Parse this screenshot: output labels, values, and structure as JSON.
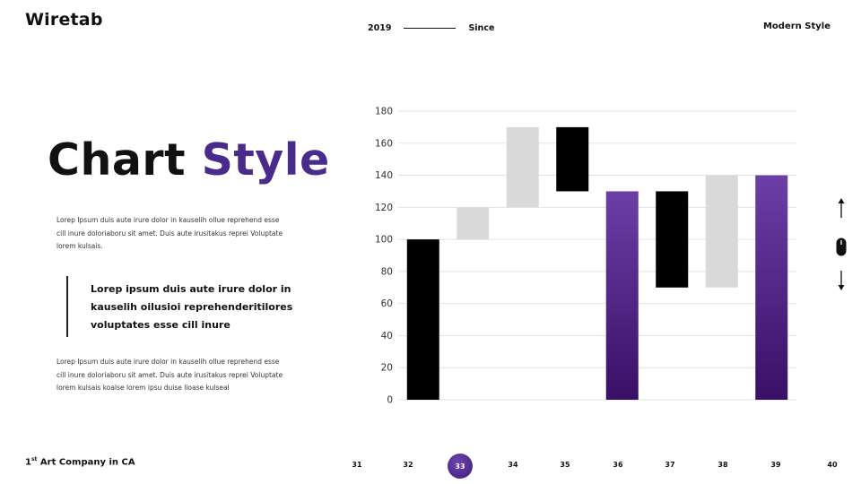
{
  "header": {
    "brand": "Wiretab",
    "year": "2019",
    "since": "Since",
    "style_label": "Modern Style"
  },
  "hero": {
    "title_part1": "Chart",
    "title_part2": "Style",
    "paragraph1": "Lorep  Ipsum duis aute irure dolor in kauselih ollue reprehend esse cill inure doloriaboru sit amet. Duis aute irusitakus reprei Voluptate lorem kulsais.",
    "quote": "Lorep  ipsum duis aute irure dolor in kauselih oilusioi reprehenderitilores voluptates esse cill inure",
    "paragraph2": "Lorep  Ipsum duis aute irure dolor in kauselih ollue reprehend esse cill inure doloriaboru sit amet. Duis aute irusitakus reprei Voluptate lorem kulsais koalse lorem ipsu duise lioase kulseal"
  },
  "footer": {
    "company_sup": "st",
    "company_prefix": "1",
    "company_rest": " Art Company in CA"
  },
  "pager": {
    "pages": [
      "31",
      "32",
      "33",
      "34",
      "35",
      "36",
      "37",
      "38",
      "39",
      "40"
    ],
    "active": "33"
  },
  "colors": {
    "accent": "#4a2a8a",
    "bar_black": "#000000",
    "bar_grey": "#d9d9d9",
    "bar_purple_top": "#6b3fa6",
    "bar_purple_bottom": "#3a0f66",
    "grid": "#e3e3e3"
  },
  "icons": {
    "up": "arrow-up-icon",
    "mouse": "mouse-icon",
    "down": "arrow-down-icon"
  },
  "chart_data": {
    "type": "bar",
    "subtype": "waterfall",
    "title": "",
    "xlabel": "",
    "ylabel": "",
    "ylim": [
      0,
      180
    ],
    "yticks": [
      0,
      20,
      40,
      60,
      80,
      100,
      120,
      140,
      160,
      180
    ],
    "grid": true,
    "legend": "none",
    "bars": [
      {
        "start": 0,
        "end": 100,
        "color": "black"
      },
      {
        "start": 100,
        "end": 120,
        "color": "grey"
      },
      {
        "start": 120,
        "end": 170,
        "color": "grey"
      },
      {
        "start": 130,
        "end": 170,
        "color": "black"
      },
      {
        "start": 0,
        "end": 130,
        "color": "purple"
      },
      {
        "start": 70,
        "end": 130,
        "color": "black"
      },
      {
        "start": 70,
        "end": 140,
        "color": "grey"
      },
      {
        "start": 0,
        "end": 140,
        "color": "purple"
      }
    ]
  }
}
